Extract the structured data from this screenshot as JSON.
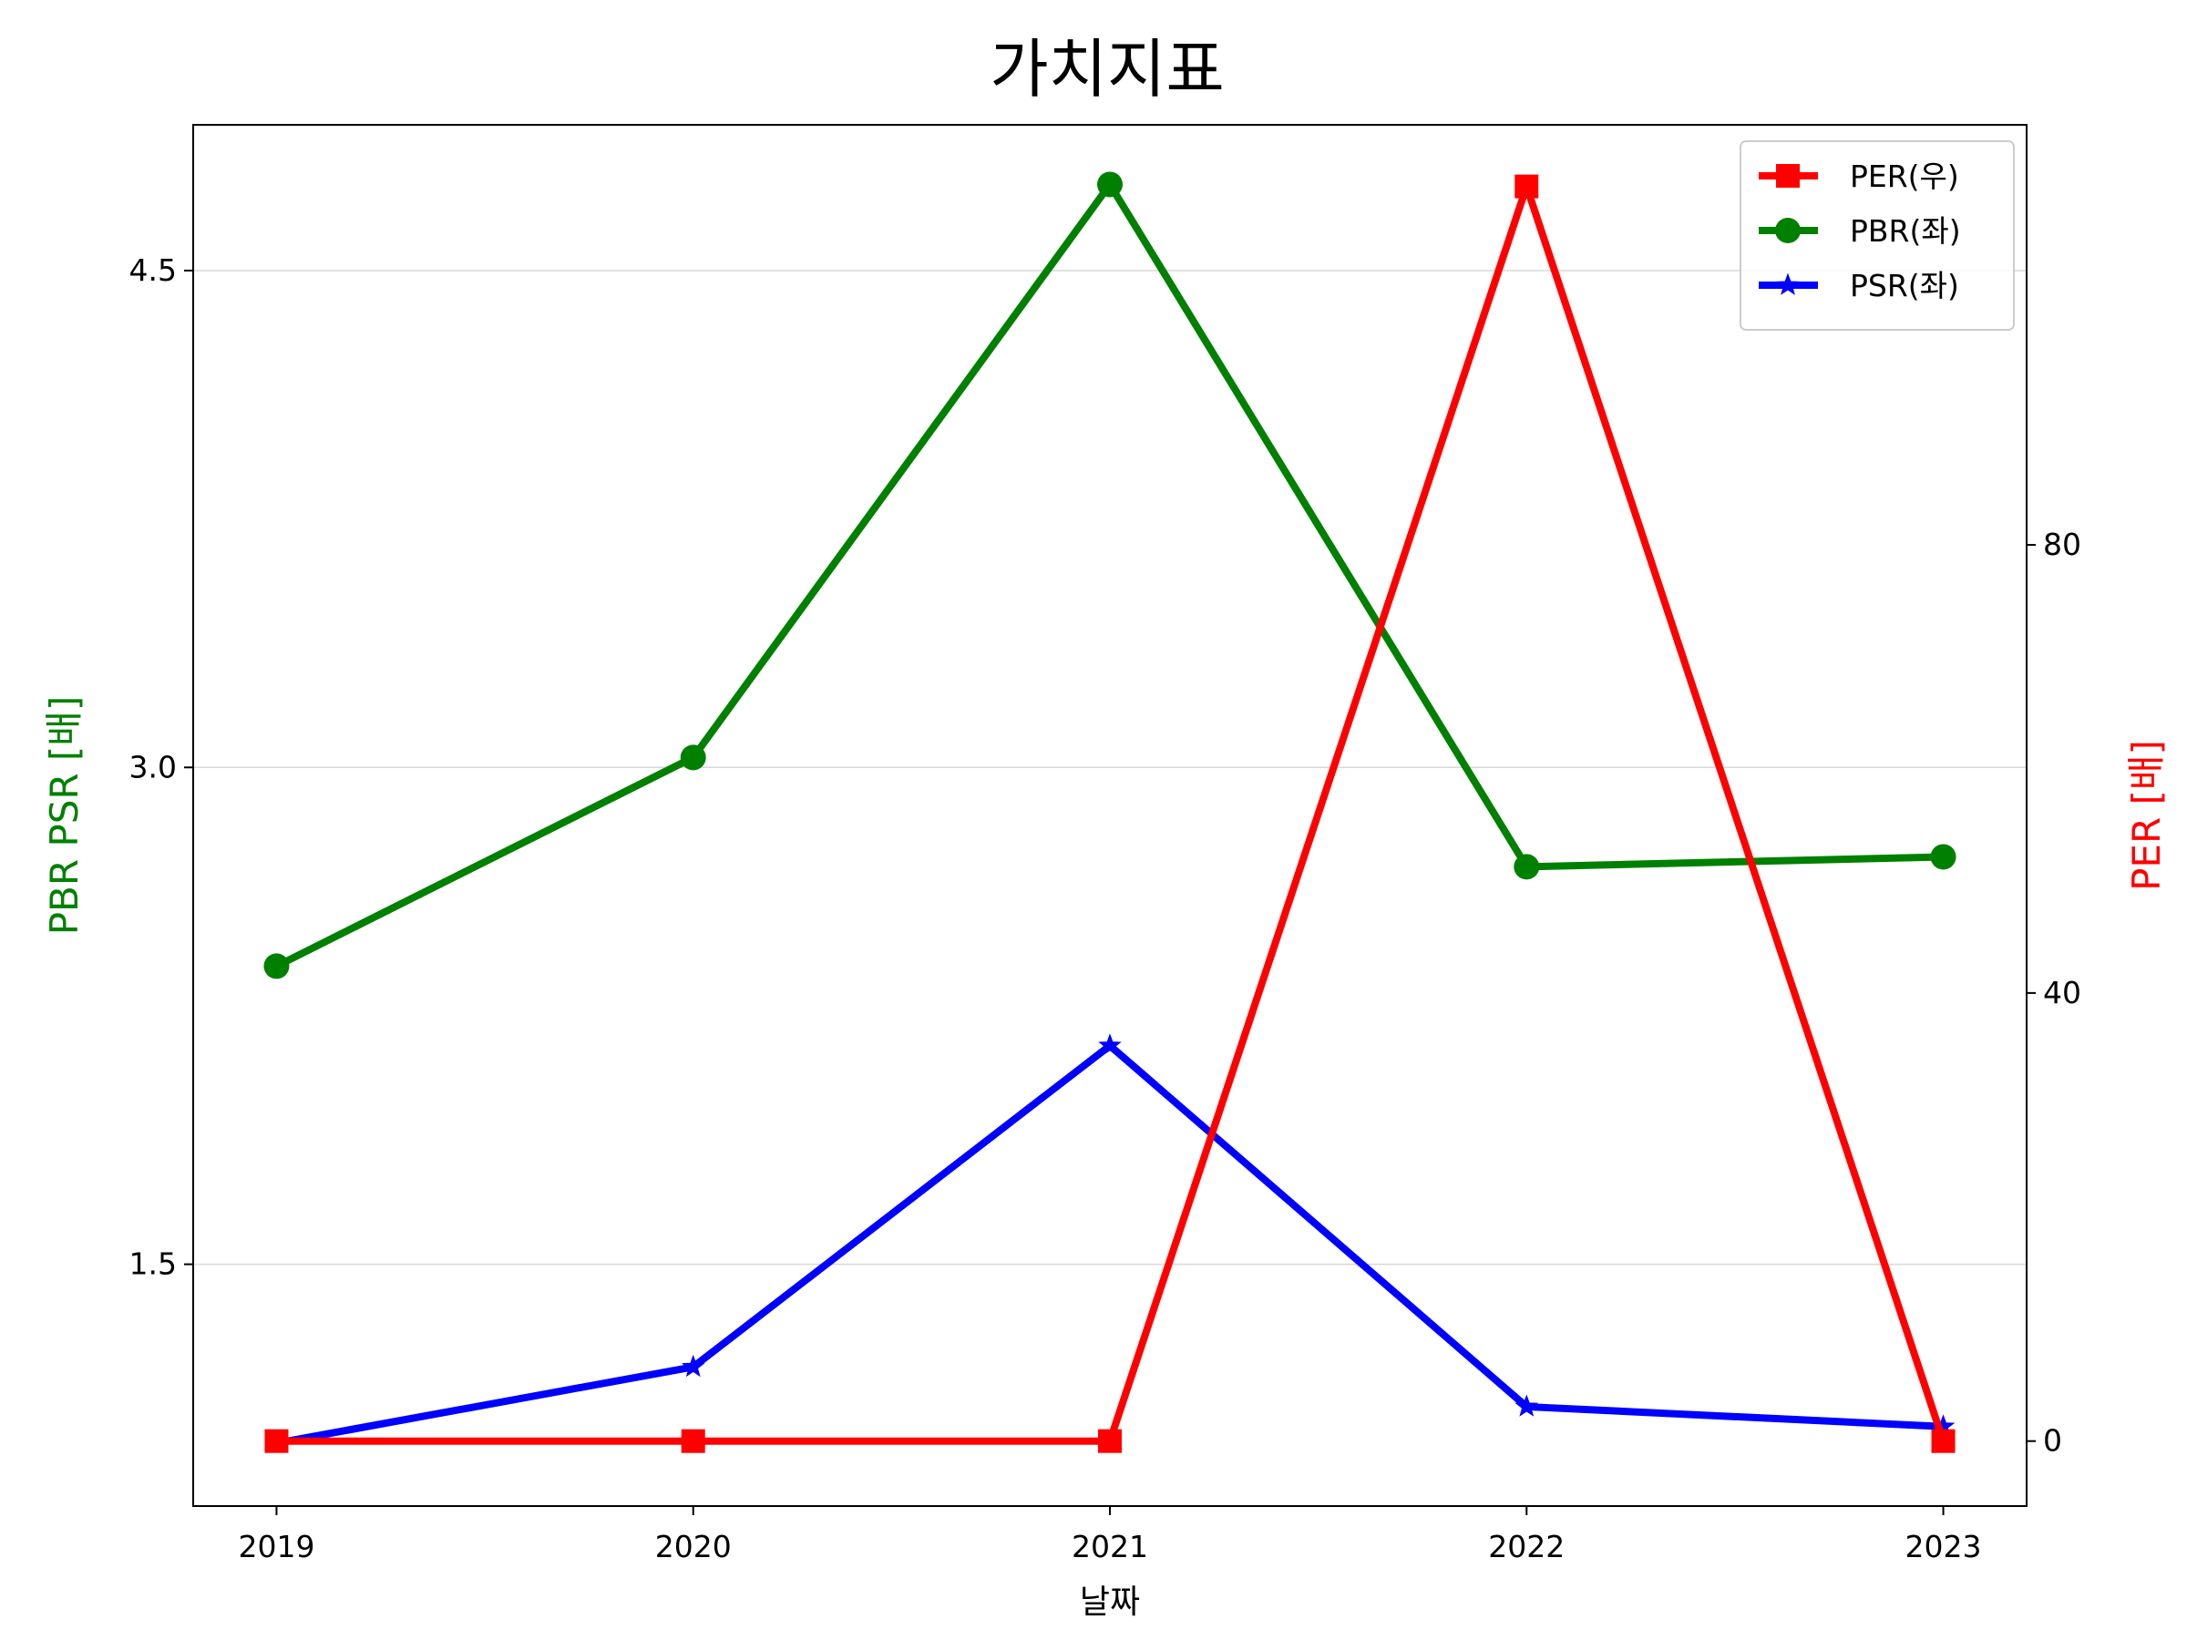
{
  "chart_data": {
    "type": "line",
    "title": "가치지표",
    "xlabel": "날짜",
    "ylabel_left": "PBR PSR [배]",
    "ylabel_right": "PER [배]",
    "ylabel_left_color": "#008000",
    "ylabel_right_color": "#ff0000",
    "categories": [
      "2019",
      "2020",
      "2021",
      "2022",
      "2023"
    ],
    "xlim": [
      2018.8,
      2023.2
    ],
    "ylim_left": [
      0.77,
      4.94
    ],
    "ylim_right": [
      -5.8,
      117.5
    ],
    "yticks_left": [
      1.5,
      3.0,
      4.5
    ],
    "ytick_labels_left": [
      "1.5",
      "3.0",
      "4.5"
    ],
    "yticks_right": [
      0,
      40,
      80
    ],
    "ytick_labels_right": [
      "0",
      "40",
      "80"
    ],
    "grid": "horizontal (left axis)",
    "legend_position": "top-right",
    "series": [
      {
        "name": "PER(우)",
        "axis": "right",
        "color": "#ff0000",
        "marker": "square",
        "values": [
          0,
          0,
          0,
          112,
          0
        ]
      },
      {
        "name": "PBR(좌)",
        "axis": "left",
        "color": "#008000",
        "marker": "circle",
        "values": [
          2.4,
          3.03,
          4.76,
          2.7,
          2.73
        ]
      },
      {
        "name": "PSR(좌)",
        "axis": "left",
        "color": "#0000ff",
        "marker": "star",
        "values": [
          0.96,
          1.19,
          2.16,
          1.07,
          1.01
        ]
      }
    ]
  }
}
